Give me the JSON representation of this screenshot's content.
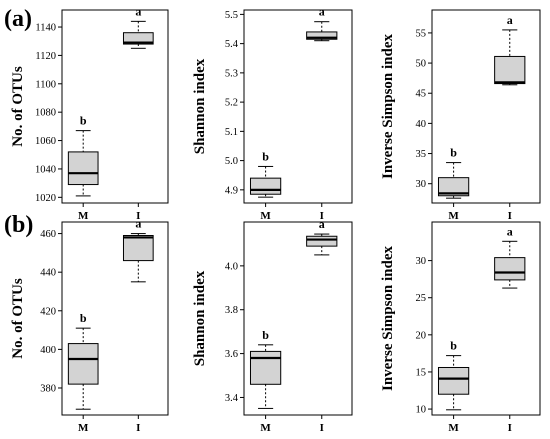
{
  "panel_labels": [
    "(a)",
    "(b)"
  ],
  "chart_data": [
    {
      "type": "box",
      "panel": "(a)",
      "ylabel": "No. of OTUs",
      "categories": [
        "M",
        "I"
      ],
      "yticks": [
        1020,
        1040,
        1060,
        1080,
        1100,
        1120,
        1140
      ],
      "ylim": [
        1016,
        1152
      ],
      "boxes": [
        {
          "category": "M",
          "min": 1021,
          "q1": 1029,
          "median": 1037,
          "q3": 1052,
          "max": 1067,
          "label": "b"
        },
        {
          "category": "I",
          "min": 1125,
          "q1": 1128,
          "median": 1129,
          "q3": 1136,
          "max": 1144,
          "label": "a"
        }
      ]
    },
    {
      "type": "box",
      "panel": "(a)",
      "ylabel": "Shannon index",
      "categories": [
        "M",
        "I"
      ],
      "yticks": [
        4.9,
        5.0,
        5.1,
        5.2,
        5.3,
        5.4,
        5.5
      ],
      "yticklabels": [
        "4.9",
        "5.0",
        "5.1",
        "5.2",
        "5.3",
        "5.4",
        "5.5"
      ],
      "ylim": [
        4.855,
        5.515
      ],
      "boxes": [
        {
          "category": "M",
          "min": 4.875,
          "q1": 4.885,
          "median": 4.9,
          "q3": 4.94,
          "max": 4.98,
          "label": "b"
        },
        {
          "category": "I",
          "min": 5.41,
          "q1": 5.415,
          "median": 5.42,
          "q3": 5.44,
          "max": 5.475,
          "label": "a"
        }
      ]
    },
    {
      "type": "box",
      "panel": "(a)",
      "ylabel": "Inverse Simpson index",
      "categories": [
        "M",
        "I"
      ],
      "yticks": [
        30,
        35,
        40,
        45,
        50,
        55
      ],
      "ylim": [
        26.8,
        58.8
      ],
      "boxes": [
        {
          "category": "M",
          "min": 27.6,
          "q1": 28.0,
          "median": 28.4,
          "q3": 31.0,
          "max": 33.5,
          "label": "b"
        },
        {
          "category": "I",
          "min": 46.4,
          "q1": 46.6,
          "median": 46.8,
          "q3": 51.1,
          "max": 55.5,
          "label": "a"
        }
      ]
    },
    {
      "type": "box",
      "panel": "(b)",
      "ylabel": "No. of OTUs",
      "categories": [
        "M",
        "I"
      ],
      "yticks": [
        380,
        400,
        420,
        440,
        460
      ],
      "ylim": [
        366,
        466
      ],
      "boxes": [
        {
          "category": "M",
          "min": 369,
          "q1": 382,
          "median": 395,
          "q3": 403,
          "max": 411,
          "label": "b"
        },
        {
          "category": "I",
          "min": 435,
          "q1": 446,
          "median": 458,
          "q3": 459,
          "max": 460,
          "label": "a"
        }
      ]
    },
    {
      "type": "box",
      "panel": "(b)",
      "ylabel": "Shannon index",
      "categories": [
        "M",
        "I"
      ],
      "yticks": [
        3.4,
        3.6,
        3.8,
        4.0
      ],
      "yticklabels": [
        "3.4",
        "3.6",
        "3.8",
        "4.0"
      ],
      "ylim": [
        3.32,
        4.2
      ],
      "boxes": [
        {
          "category": "M",
          "min": 3.35,
          "q1": 3.46,
          "median": 3.58,
          "q3": 3.61,
          "max": 3.64,
          "label": "b"
        },
        {
          "category": "I",
          "min": 4.05,
          "q1": 4.09,
          "median": 4.12,
          "q3": 4.135,
          "max": 4.145,
          "label": "a"
        }
      ]
    },
    {
      "type": "box",
      "panel": "(b)",
      "ylabel": "Inverse Simpson index",
      "categories": [
        "M",
        "I"
      ],
      "yticks": [
        10,
        15,
        20,
        25,
        30
      ],
      "ylim": [
        9.2,
        35.2
      ],
      "boxes": [
        {
          "category": "M",
          "min": 9.9,
          "q1": 12.0,
          "median": 14.1,
          "q3": 15.6,
          "max": 17.2,
          "label": "b"
        },
        {
          "category": "I",
          "min": 26.3,
          "q1": 27.4,
          "median": 28.4,
          "q3": 30.4,
          "max": 32.6,
          "label": "a"
        }
      ]
    }
  ],
  "colors": {
    "box_fill": "#d3d3d3",
    "line": "#000000"
  }
}
